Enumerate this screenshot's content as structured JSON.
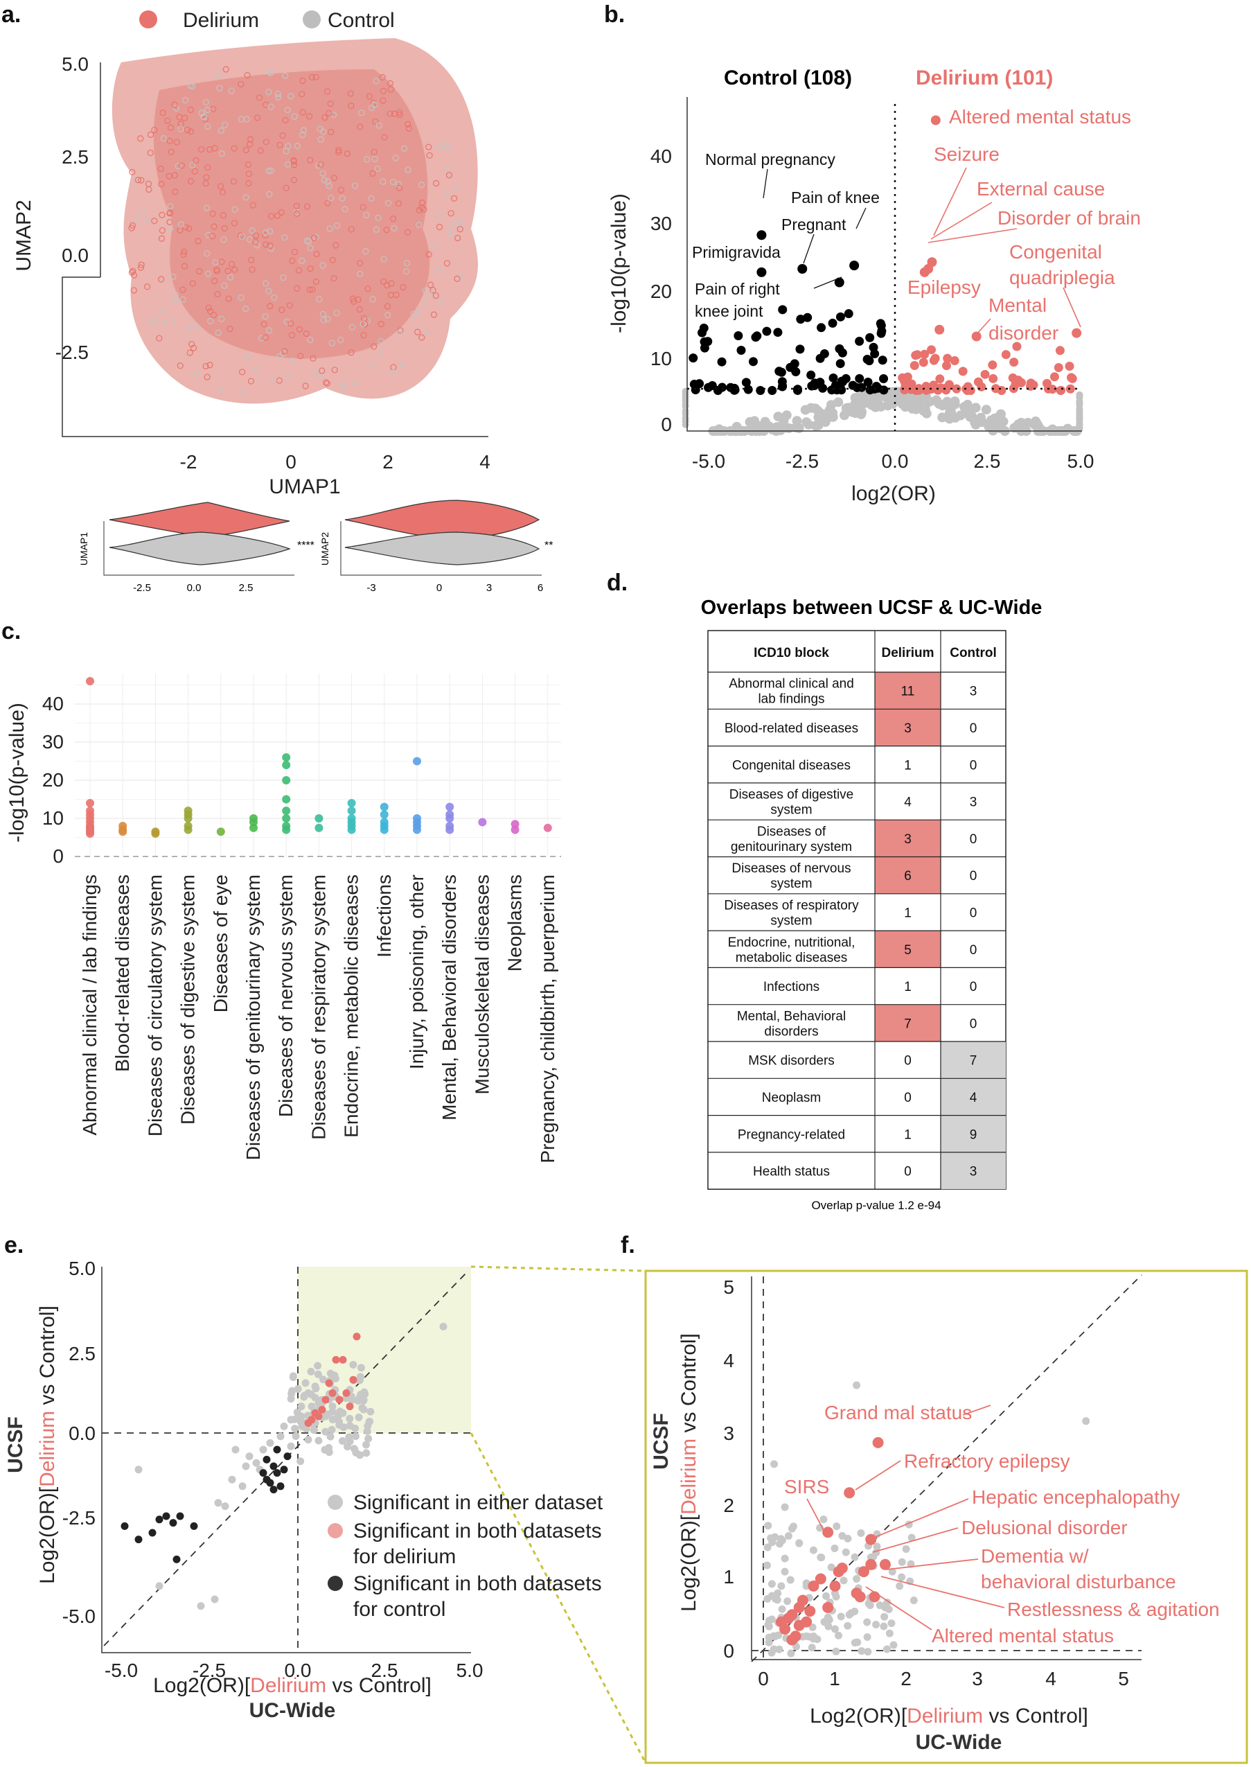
{
  "panels": {
    "a": {
      "label": "a.",
      "legend": [
        {
          "name": "Delirium",
          "color": "#e8726d"
        },
        {
          "name": "Control",
          "color": "#bdbdbd"
        }
      ],
      "xlabel": "UMAP1",
      "ylabel": "UMAP2",
      "xticks": [
        "-2",
        "0",
        "2",
        "4"
      ],
      "yticks": [
        "5.0",
        "2.5",
        "0.0",
        "-2.5"
      ],
      "violin1": {
        "ylabel": "UMAP1",
        "xticks": [
          "-2.5",
          "0.0",
          "2.5"
        ],
        "sig": "****"
      },
      "violin2": {
        "ylabel": "UMAP2",
        "xticks": [
          "-3",
          "0",
          "3",
          "6"
        ],
        "sig": "**"
      }
    },
    "b": {
      "label": "b.",
      "title_control": "Control (108)",
      "title_delirium": "Delirium (101)",
      "xlabel": "log2(OR)",
      "ylabel": "-log10(p-value)",
      "xticks": [
        "-5.0",
        "-2.5",
        "0.0",
        "2.5",
        "5.0"
      ],
      "yticks": [
        "0",
        "10",
        "20",
        "30",
        "40"
      ],
      "labels_control": [
        "Normal pregnancy",
        "Pain of knee",
        "Pregnant",
        "Primigravida",
        "Pain of right",
        "knee joint"
      ],
      "labels_delirium": [
        "Altered mental status",
        "Seizure",
        "External cause",
        "Disorder of brain",
        "Congenital",
        "quadriplegia",
        "Epilepsy",
        "Mental",
        "disorder"
      ]
    },
    "c": {
      "label": "c.",
      "ylabel": "-log10(p-value)",
      "yticks": [
        "0",
        "10",
        "20",
        "30",
        "40"
      ],
      "categories": [
        "Abnormal clinical / lab findings",
        "Blood-related diseases",
        "Diseases of circulatory system",
        "Diseases of digestive system",
        "Diseases of eye",
        "Diseases of genitourinary system",
        "Diseases of nervous system",
        "Diseases of respiratory system",
        "Endocrine, metabolic diseases",
        "Infections",
        "Injury, poisoning, other",
        "Mental, Behavioral disorders",
        "Musculoskeletal diseases",
        "Neoplasms",
        "Pregnancy, childbirth, puerperium"
      ]
    },
    "d": {
      "label": "d.",
      "title": "Overlaps between UCSF & UC-Wide",
      "headers": [
        "ICD10 block",
        "Delirium",
        "Control"
      ],
      "rows": [
        {
          "block": [
            "Abnormal clinical and",
            "lab findings"
          ],
          "delirium": "11",
          "control": "3",
          "hl": "d"
        },
        {
          "block": [
            "Blood-related diseases"
          ],
          "delirium": "3",
          "control": "0",
          "hl": "d"
        },
        {
          "block": [
            "Congenital diseases"
          ],
          "delirium": "1",
          "control": "0",
          "hl": ""
        },
        {
          "block": [
            "Diseases of digestive",
            "system"
          ],
          "delirium": "4",
          "control": "3",
          "hl": ""
        },
        {
          "block": [
            "Diseases of",
            "genitourinary system"
          ],
          "delirium": "3",
          "control": "0",
          "hl": "d"
        },
        {
          "block": [
            "Diseases of nervous",
            "system"
          ],
          "delirium": "6",
          "control": "0",
          "hl": "d"
        },
        {
          "block": [
            "Diseases of respiratory",
            "system"
          ],
          "delirium": "1",
          "control": "0",
          "hl": ""
        },
        {
          "block": [
            "Endocrine, nutritional,",
            "metabolic diseases"
          ],
          "delirium": "5",
          "control": "0",
          "hl": "d"
        },
        {
          "block": [
            "Infections"
          ],
          "delirium": "1",
          "control": "0",
          "hl": ""
        },
        {
          "block": [
            "Mental, Behavioral",
            "disorders"
          ],
          "delirium": "7",
          "control": "0",
          "hl": "d"
        },
        {
          "block": [
            "MSK disorders"
          ],
          "delirium": "0",
          "control": "7",
          "hl": "c"
        },
        {
          "block": [
            "Neoplasm"
          ],
          "delirium": "0",
          "control": "4",
          "hl": "c"
        },
        {
          "block": [
            "Pregnancy-related"
          ],
          "delirium": "1",
          "control": "9",
          "hl": "c"
        },
        {
          "block": [
            "Health status"
          ],
          "delirium": "0",
          "control": "3",
          "hl": "c"
        }
      ],
      "footnote": "Overlap p-value 1.2 e-94"
    },
    "e": {
      "label": "e.",
      "xticks": [
        "-5.0",
        "-2.5",
        "0.0",
        "2.5",
        "5.0"
      ],
      "yticks": [
        "5.0",
        "2.5",
        "0.0",
        "-2.5",
        "-5.0"
      ],
      "xlabel": {
        "pre": "Log2(OR)[",
        "red": "Delirium",
        "post": " vs Control]"
      },
      "xsub": "UC-Wide",
      "ylabel": {
        "pre": "Log2(OR)[",
        "red": "Delirium",
        "post": " vs Control]"
      },
      "ysub": "UCSF",
      "legend": [
        {
          "lines": [
            "Significant in either dataset"
          ],
          "color": "#c8c8c8"
        },
        {
          "lines": [
            "Significant in both datasets",
            "for delirium"
          ],
          "color": "#eda39f"
        },
        {
          "lines": [
            "Significant in both datasets",
            "for control"
          ],
          "color": "#333333"
        }
      ]
    },
    "f": {
      "label": "f.",
      "xticks": [
        "0",
        "1",
        "2",
        "3",
        "4",
        "5"
      ],
      "yticks": [
        "0",
        "1",
        "2",
        "3",
        "4",
        "5"
      ],
      "xlabel": {
        "pre": "Log2(OR)[",
        "red": "Delirium",
        "post": " vs Control]"
      },
      "xsub": "UC-Wide",
      "ylabel": {
        "pre": "Log2(OR)[",
        "red": "Delirium",
        "post": " vs Control]"
      },
      "ysub": "UCSF",
      "annotations": [
        "Grand mal status",
        "Refractory epilepsy",
        "SIRS",
        "Hepatic encephalopathy",
        "Delusional disorder",
        "Dementia w/",
        "behavioral disturbance",
        "Restlessness & agitation",
        "Altered mental status"
      ]
    }
  },
  "chart_data": [
    {
      "type": "scatter",
      "panel": "b",
      "title": "Control (108) / Delirium (101)",
      "xlabel": "log2(OR)",
      "ylabel": "-log10(p-value)",
      "xlim": [
        -5.7,
        5.0
      ],
      "ylim": [
        -2,
        48
      ],
      "significance_threshold_y": 6,
      "labeled_points": [
        {
          "label": "Altered mental status",
          "x": 1.1,
          "y": 46
        },
        {
          "label": "Seizure",
          "x": 1.0,
          "y": 25
        },
        {
          "label": "External cause",
          "x": 0.9,
          "y": 24
        },
        {
          "label": "Disorder of brain",
          "x": 0.8,
          "y": 23.5
        },
        {
          "label": "Congenital quadriplegia",
          "x": 4.9,
          "y": 14.5
        },
        {
          "label": "Epilepsy",
          "x": 1.2,
          "y": 15
        },
        {
          "label": "Mental disorder",
          "x": 2.2,
          "y": 14
        },
        {
          "label": "Normal pregnancy",
          "x": -3.6,
          "y": 29
        },
        {
          "label": "Pain of knee",
          "x": -1.1,
          "y": 24.5
        },
        {
          "label": "Pregnant",
          "x": -2.5,
          "y": 24
        },
        {
          "label": "Primigravida",
          "x": -3.6,
          "y": 23.5
        },
        {
          "label": "Pain of right knee joint",
          "x": -1.5,
          "y": 22
        }
      ]
    },
    {
      "type": "scatter",
      "panel": "c",
      "ylabel": "-log10(p-value)",
      "ylim": [
        0,
        48
      ],
      "categories": [
        "Abnormal clinical / lab findings",
        "Blood-related diseases",
        "Diseases of circulatory system",
        "Diseases of digestive system",
        "Diseases of eye",
        "Diseases of genitourinary system",
        "Diseases of nervous system",
        "Diseases of respiratory system",
        "Endocrine, metabolic diseases",
        "Infections",
        "Injury, poisoning, other",
        "Mental, Behavioral disorders",
        "Musculoskeletal diseases",
        "Neoplasms",
        "Pregnancy, childbirth, puerperium"
      ],
      "colors": [
        "#e8726d",
        "#d98a3c",
        "#b59a2f",
        "#9aa736",
        "#73b33c",
        "#4cb850",
        "#3bbc73",
        "#39bd98",
        "#3cbcbc",
        "#3db4d9",
        "#5b9fe8",
        "#8c88e8",
        "#b774e0",
        "#d866c8",
        "#e56a9e"
      ],
      "series": [
        {
          "name": "Abnormal clinical / lab findings",
          "values": [
            46,
            14,
            12,
            11,
            10,
            9,
            8,
            7.5,
            7,
            6.5,
            6
          ]
        },
        {
          "name": "Blood-related diseases",
          "values": [
            8,
            7,
            6.5
          ]
        },
        {
          "name": "Diseases of circulatory system",
          "values": [
            6.5,
            6
          ]
        },
        {
          "name": "Diseases of digestive system",
          "values": [
            12,
            11,
            10,
            8,
            7
          ]
        },
        {
          "name": "Diseases of eye",
          "values": [
            6.5
          ]
        },
        {
          "name": "Diseases of genitourinary system",
          "values": [
            10,
            9,
            7.5
          ]
        },
        {
          "name": "Diseases of nervous system",
          "values": [
            26,
            24,
            20,
            15,
            12,
            10,
            8,
            7
          ]
        },
        {
          "name": "Diseases of respiratory system",
          "values": [
            10,
            7.5
          ]
        },
        {
          "name": "Endocrine, metabolic diseases",
          "values": [
            14,
            12,
            10,
            9,
            8,
            7
          ]
        },
        {
          "name": "Infections",
          "values": [
            13,
            11,
            9,
            8,
            7
          ]
        },
        {
          "name": "Injury, poisoning, other",
          "values": [
            25,
            10,
            9,
            8,
            7
          ]
        },
        {
          "name": "Mental, Behavioral disorders",
          "values": [
            13,
            11,
            10,
            8,
            7
          ]
        },
        {
          "name": "Musculoskeletal diseases",
          "values": [
            9
          ]
        },
        {
          "name": "Neoplasms",
          "values": [
            8.5,
            7
          ]
        },
        {
          "name": "Pregnancy, childbirth, puerperium",
          "values": [
            7.5
          ]
        }
      ]
    },
    {
      "type": "table",
      "panel": "d",
      "title": "Overlaps between UCSF & UC-Wide",
      "columns": [
        "ICD10 block",
        "Delirium",
        "Control"
      ],
      "rows": [
        [
          "Abnormal clinical and lab findings",
          11,
          3
        ],
        [
          "Blood-related diseases",
          3,
          0
        ],
        [
          "Congenital diseases",
          1,
          0
        ],
        [
          "Diseases of digestive system",
          4,
          3
        ],
        [
          "Diseases of genitourinary system",
          3,
          0
        ],
        [
          "Diseases of nervous system",
          6,
          0
        ],
        [
          "Diseases of respiratory system",
          1,
          0
        ],
        [
          "Endocrine, nutritional, metabolic diseases",
          5,
          0
        ],
        [
          "Infections",
          1,
          0
        ],
        [
          "Mental, Behavioral disorders",
          7,
          0
        ],
        [
          "MSK disorders",
          0,
          7
        ],
        [
          "Neoplasm",
          0,
          4
        ],
        [
          "Pregnancy-related",
          1,
          9
        ],
        [
          "Health status",
          0,
          3
        ]
      ]
    },
    {
      "type": "scatter",
      "panel": "e",
      "xlabel": "Log2(OR)[Delirium vs Control] UC-Wide",
      "ylabel": "Log2(OR)[Delirium vs Control] UCSF",
      "xlim": [
        -5.6,
        5.0
      ],
      "ylim": [
        -5.7,
        5.2
      ],
      "series": [
        {
          "name": "Significant in both datasets for control",
          "x": [
            -5.0,
            -4.6,
            -4.2,
            -4.0,
            -3.8,
            -3.6,
            -3.5,
            -3.4,
            -3.0,
            -1.0,
            -0.9,
            -0.8,
            -0.7,
            -0.6,
            -0.5,
            -0.9,
            -0.6,
            -0.4,
            -0.3,
            -0.7
          ],
          "y": [
            -2.8,
            -3.2,
            -3.0,
            -2.6,
            -2.5,
            -2.7,
            -3.8,
            -2.5,
            -2.8,
            -1.2,
            -1.4,
            -1.5,
            -1.0,
            -1.2,
            -1.6,
            -0.8,
            -0.5,
            -1.1,
            -0.7,
            -1.7
          ]
        },
        {
          "name": "Significant in both datasets for delirium",
          "x": [
            1.7,
            1.3,
            1.1,
            1.6,
            1.0,
            0.8,
            1.2,
            1.5,
            0.5,
            0.6,
            0.4,
            0.3,
            0.9,
            1.4,
            0.7
          ],
          "y": [
            2.9,
            2.2,
            2.2,
            1.6,
            1.2,
            1.0,
            1.0,
            0.8,
            0.6,
            0.5,
            0.4,
            0.3,
            1.5,
            1.2,
            0.7
          ]
        },
        {
          "name": "Significant in either dataset",
          "x": [
            -2.3,
            -2.1,
            -1.9,
            -1.6,
            -1.5,
            -1.4,
            -1.2,
            -1.1,
            -1.0,
            -0.8,
            -0.5,
            -0.4,
            -0.2,
            0.1,
            0.2,
            0.3,
            0.4,
            0.5,
            0.6,
            0.7,
            0.8,
            0.9,
            1.0,
            1.1,
            1.3,
            1.5,
            1.9,
            4.2,
            -4.6,
            -4.0,
            -2.4,
            -2.8,
            -1.8,
            -0.2,
            0.3,
            0.1,
            0.5,
            0.6
          ],
          "y": [
            -2.1,
            -2.2,
            -1.4,
            -1.6,
            -1.0,
            -0.7,
            -0.9,
            -1.1,
            -0.5,
            -0.3,
            -0.1,
            0.2,
            -0.4,
            0.5,
            0.3,
            1.2,
            0.8,
            1.4,
            0.7,
            0.9,
            0.5,
            1.0,
            0.8,
            1.1,
            0.6,
            1.3,
            1.0,
            3.2,
            -1.1,
            -4.6,
            -5.0,
            -5.2,
            -0.5,
            0.4,
            -0.2,
            0.8,
            0.3,
            0.9
          ]
        }
      ]
    },
    {
      "type": "scatter",
      "panel": "f",
      "xlabel": "Log2(OR)[Delirium vs Control] UC-Wide",
      "ylabel": "Log2(OR)[Delirium vs Control] UCSF",
      "xlim": [
        -0.3,
        5.2
      ],
      "ylim": [
        -0.2,
        5.3
      ],
      "series": [
        {
          "name": "Delirium significant (labeled)",
          "x": [
            1.6,
            1.2,
            0.9,
            1.5,
            1.7,
            1.4,
            1.35,
            1.3
          ],
          "y": [
            2.9,
            2.2,
            1.65,
            1.55,
            1.2,
            1.1,
            0.75,
            0.8
          ],
          "labels": [
            "Grand mal status",
            "Refractory epilepsy",
            "SIRS",
            "Hepatic encephalopathy",
            "Delusional disorder",
            "Dementia w/ behavioral disturbance",
            "Restlessness & agitation",
            "Altered mental status"
          ]
        },
        {
          "name": "Delirium significant",
          "x": [
            0.4,
            0.5,
            0.6,
            0.3,
            0.45,
            0.55,
            0.7,
            0.8,
            1.0,
            1.05,
            1.1,
            0.35,
            0.25,
            0.65,
            0.9,
            1.5,
            1.55,
            0.5,
            0.4
          ],
          "y": [
            0.5,
            0.6,
            0.4,
            0.3,
            0.2,
            0.7,
            0.9,
            1.0,
            0.9,
            1.1,
            1.15,
            0.45,
            0.4,
            0.55,
            0.6,
            1.2,
            0.75,
            0.35,
            0.15
          ]
        },
        {
          "name": "Significant in either dataset",
          "x": [
            0.2,
            0.3,
            0.5,
            0.6,
            0.8,
            0.9,
            1.0,
            1.2,
            1.3,
            1.5,
            1.7,
            1.9,
            2.1,
            0.4,
            0.7,
            1.1,
            0.15,
            0.3,
            1.0,
            4.5,
            1.3,
            0.25,
            0.6,
            0.85,
            1.8
          ],
          "y": [
            0.8,
            1.1,
            1.5,
            0.9,
            1.3,
            0.6,
            0.8,
            0.5,
            1.0,
            1.3,
            0.6,
            0.9,
            0.7,
            1.7,
            1.4,
            1.6,
            2.6,
            2.0,
            0.3,
            3.2,
            3.7,
            0.9,
            0.2,
            0.4,
            1.1
          ]
        }
      ]
    }
  ]
}
